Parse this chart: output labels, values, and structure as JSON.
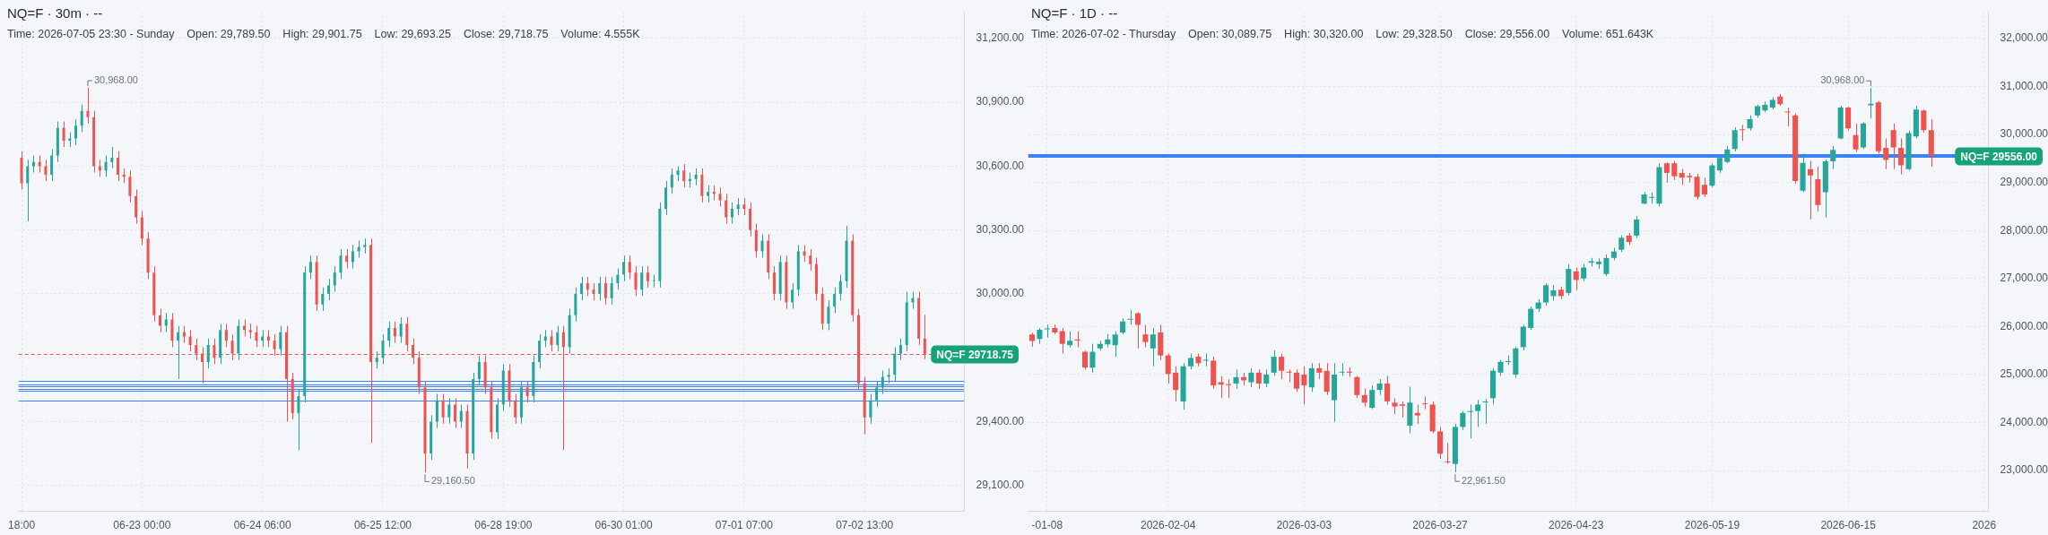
{
  "chart_data": [
    {
      "type": "candlestick",
      "title": "NQ=F · 30m · --",
      "subtitle": "Time: 2026-07-05 23:30 - Sunday    Open: 29,789.50    High: 29,901.75    Low: 29,693.25    Close: 29,718.75    Volume: 4.555K",
      "categories": [
        "18:00",
        null,
        null,
        null,
        null,
        null,
        null,
        null,
        null,
        null,
        null,
        null,
        null,
        null,
        null,
        null,
        null,
        null,
        null,
        null,
        "06-23 00:00",
        null,
        null,
        null,
        null,
        null,
        null,
        null,
        null,
        null,
        null,
        null,
        null,
        null,
        null,
        null,
        null,
        null,
        null,
        null,
        "06-24 06:00",
        null,
        null,
        null,
        null,
        null,
        null,
        null,
        null,
        null,
        null,
        null,
        null,
        null,
        null,
        null,
        null,
        null,
        null,
        null,
        "06-25 12:00",
        null,
        null,
        null,
        null,
        null,
        null,
        null,
        null,
        null,
        null,
        null,
        null,
        null,
        null,
        null,
        null,
        null,
        null,
        null,
        "06-28 19:00",
        null,
        null,
        null,
        null,
        null,
        null,
        null,
        null,
        null,
        null,
        null,
        null,
        null,
        null,
        null,
        null,
        null,
        null,
        null,
        "06-30 01:00",
        null,
        null,
        null,
        null,
        null,
        null,
        null,
        null,
        null,
        null,
        null,
        null,
        null,
        null,
        null,
        null,
        null,
        null,
        null,
        "07-01 07:00",
        null,
        null,
        null,
        null,
        null,
        null,
        null,
        null,
        null,
        null,
        null,
        null,
        null,
        null,
        null,
        null,
        null,
        null,
        null,
        "07-02 13:00",
        null,
        null,
        null,
        null,
        null,
        null,
        null,
        null,
        null,
        null,
        null,
        null,
        null,
        null,
        null,
        null
      ],
      "ohlc": [
        [
          30640,
          30670,
          30490,
          30520
        ],
        [
          30520,
          30630,
          30340,
          30600
        ],
        [
          30600,
          30650,
          30570,
          30620
        ],
        [
          30620,
          30650,
          30570,
          30600
        ],
        [
          30600,
          30630,
          30530,
          30560
        ],
        [
          30560,
          30680,
          30530,
          30650
        ],
        [
          30650,
          30810,
          30620,
          30780
        ],
        [
          30780,
          30810,
          30690,
          30720
        ],
        [
          30720,
          30760,
          30690,
          30730
        ],
        [
          30730,
          30820,
          30700,
          30790
        ],
        [
          30790,
          30890,
          30760,
          30860
        ],
        [
          30860,
          30968,
          30800,
          30830
        ],
        [
          30830,
          30860,
          30570,
          30600
        ],
        [
          30600,
          30630,
          30550,
          30580
        ],
        [
          30580,
          30650,
          30550,
          30620
        ],
        [
          30620,
          30690,
          30590,
          30640
        ],
        [
          30640,
          30670,
          30530,
          30560
        ],
        [
          30560,
          30590,
          30520,
          30550
        ],
        [
          30550,
          30580,
          30430,
          30460
        ],
        [
          30460,
          30490,
          30330,
          30360
        ],
        [
          30360,
          30390,
          30230,
          30260
        ],
        [
          30260,
          30290,
          30070,
          30100
        ],
        [
          30100,
          30130,
          29870,
          29900
        ],
        [
          29900,
          29930,
          29820,
          29850
        ],
        [
          29850,
          29910,
          29820,
          29880
        ],
        [
          29880,
          29910,
          29750,
          29780
        ],
        [
          29780,
          29850,
          29600,
          29820
        ],
        [
          29820,
          29850,
          29770,
          29800
        ],
        [
          29800,
          29830,
          29730,
          29760
        ],
        [
          29760,
          29790,
          29690,
          29720
        ],
        [
          29720,
          29750,
          29580,
          29680
        ],
        [
          29680,
          29790,
          29650,
          29760
        ],
        [
          29760,
          29790,
          29670,
          29700
        ],
        [
          29700,
          29860,
          29670,
          29830
        ],
        [
          29830,
          29860,
          29750,
          29780
        ],
        [
          29780,
          29810,
          29690,
          29720
        ],
        [
          29720,
          29880,
          29690,
          29850
        ],
        [
          29850,
          29880,
          29800,
          29830
        ],
        [
          29830,
          29860,
          29790,
          29820
        ],
        [
          29820,
          29850,
          29750,
          29780
        ],
        [
          29780,
          29830,
          29750,
          29800
        ],
        [
          29800,
          29830,
          29750,
          29780
        ],
        [
          29780,
          29810,
          29710,
          29740
        ],
        [
          29740,
          29850,
          29710,
          29820
        ],
        [
          29820,
          29850,
          29400,
          29600
        ],
        [
          29600,
          29630,
          29410,
          29440
        ],
        [
          29440,
          29550,
          29267,
          29520
        ],
        [
          29520,
          30130,
          29490,
          30100
        ],
        [
          30100,
          30180,
          30070,
          30150
        ],
        [
          30150,
          30180,
          29920,
          29950
        ],
        [
          29950,
          30030,
          29920,
          30000
        ],
        [
          30000,
          30070,
          29970,
          30040
        ],
        [
          30040,
          30130,
          30010,
          30100
        ],
        [
          30100,
          30210,
          30070,
          30180
        ],
        [
          30180,
          30210,
          30120,
          30150
        ],
        [
          30150,
          30230,
          30120,
          30200
        ],
        [
          30200,
          30250,
          30170,
          30220
        ],
        [
          30220,
          30260,
          30190,
          30230
        ],
        [
          30230,
          30260,
          29300,
          29680
        ],
        [
          29680,
          29730,
          29650,
          29700
        ],
        [
          29700,
          29810,
          29670,
          29780
        ],
        [
          29780,
          29870,
          29750,
          29840
        ],
        [
          29840,
          29870,
          29770,
          29800
        ],
        [
          29800,
          29890,
          29770,
          29860
        ],
        [
          29860,
          29890,
          29730,
          29760
        ],
        [
          29760,
          29790,
          29670,
          29700
        ],
        [
          29700,
          29730,
          29530,
          29560
        ],
        [
          29560,
          29590,
          29160.5,
          29250
        ],
        [
          29250,
          29430,
          29220,
          29400
        ],
        [
          29400,
          29530,
          29370,
          29500
        ],
        [
          29500,
          29530,
          29390,
          29420
        ],
        [
          29420,
          29510,
          29390,
          29480
        ],
        [
          29480,
          29510,
          29370,
          29400
        ],
        [
          29400,
          29480,
          29370,
          29450
        ],
        [
          29450,
          29480,
          29180,
          29250
        ],
        [
          29250,
          29630,
          29220,
          29600
        ],
        [
          29600,
          29710,
          29570,
          29680
        ],
        [
          29680,
          29710,
          29530,
          29560
        ],
        [
          29560,
          29590,
          29320,
          29350
        ],
        [
          29350,
          29510,
          29320,
          29480
        ],
        [
          29480,
          29670,
          29450,
          29640
        ],
        [
          29640,
          29670,
          29470,
          29500
        ],
        [
          29500,
          29530,
          29390,
          29420
        ],
        [
          29420,
          29590,
          29390,
          29560
        ],
        [
          29560,
          29590,
          29490,
          29520
        ],
        [
          29520,
          29710,
          29490,
          29680
        ],
        [
          29680,
          29810,
          29650,
          29780
        ],
        [
          29780,
          29830,
          29750,
          29800
        ],
        [
          29800,
          29830,
          29730,
          29760
        ],
        [
          29760,
          29850,
          29730,
          29820
        ],
        [
          29820,
          29850,
          29267,
          29750
        ],
        [
          29750,
          29930,
          29720,
          29900
        ],
        [
          29900,
          30030,
          29870,
          30000
        ],
        [
          30000,
          30080,
          29970,
          30050
        ],
        [
          30050,
          30080,
          29990,
          30020
        ],
        [
          30020,
          30050,
          29970,
          30000
        ],
        [
          30000,
          30080,
          29970,
          30050
        ],
        [
          30050,
          30080,
          29950,
          29980
        ],
        [
          29980,
          30080,
          29950,
          30050
        ],
        [
          30050,
          30120,
          30020,
          30090
        ],
        [
          30090,
          30180,
          30060,
          30150
        ],
        [
          30150,
          30180,
          30070,
          30100
        ],
        [
          30100,
          30130,
          29990,
          30020
        ],
        [
          30020,
          30130,
          29990,
          30100
        ],
        [
          30100,
          30130,
          30030,
          30060
        ],
        [
          30060,
          30090,
          30030,
          30060
        ],
        [
          30060,
          30430,
          30030,
          30400
        ],
        [
          30400,
          30530,
          30370,
          30500
        ],
        [
          30500,
          30590,
          30470,
          30560
        ],
        [
          30560,
          30600,
          30530,
          30580
        ],
        [
          30580,
          30610,
          30500,
          30530
        ],
        [
          30530,
          30570,
          30500,
          30540
        ],
        [
          30540,
          30590,
          30510,
          30560
        ],
        [
          30560,
          30590,
          30430,
          30460
        ],
        [
          30460,
          30510,
          30430,
          30480
        ],
        [
          30480,
          30510,
          30440,
          30470
        ],
        [
          30470,
          30500,
          30410,
          30440
        ],
        [
          30440,
          30470,
          30330,
          30360
        ],
        [
          30360,
          30430,
          30330,
          30400
        ],
        [
          30400,
          30450,
          30370,
          30420
        ],
        [
          30420,
          30450,
          30370,
          30400
        ],
        [
          30400,
          30430,
          30270,
          30300
        ],
        [
          30300,
          30330,
          30170,
          30200
        ],
        [
          30200,
          30280,
          30170,
          30250
        ],
        [
          30250,
          30280,
          30070,
          30100
        ],
        [
          30100,
          30130,
          29970,
          30000
        ],
        [
          30000,
          30180,
          29970,
          30150
        ],
        [
          30150,
          30180,
          29930,
          29960
        ],
        [
          29960,
          30050,
          29930,
          30020
        ],
        [
          30020,
          30230,
          29990,
          30200
        ],
        [
          30200,
          30230,
          30150,
          30180
        ],
        [
          30180,
          30210,
          30110,
          30140
        ],
        [
          30140,
          30170,
          29970,
          30000
        ],
        [
          30000,
          30030,
          29830,
          29860
        ],
        [
          29860,
          29970,
          29830,
          29940
        ],
        [
          29940,
          30030,
          29910,
          30000
        ],
        [
          30000,
          30090,
          29970,
          30060
        ],
        [
          30060,
          30320,
          30030,
          30250
        ],
        [
          30250,
          30280,
          29870,
          29900
        ],
        [
          29900,
          29930,
          29550,
          29580
        ],
        [
          29580,
          29610,
          29340,
          29420
        ],
        [
          29420,
          29530,
          29390,
          29500
        ],
        [
          29500,
          29590,
          29470,
          29560
        ],
        [
          29560,
          29640,
          29530,
          29610
        ],
        [
          29610,
          29650,
          29580,
          29620
        ],
        [
          29620,
          29750,
          29590,
          29720
        ],
        [
          29720,
          29790,
          29690,
          29760
        ],
        [
          29760,
          30010,
          29730,
          29960
        ],
        [
          29960,
          30010,
          29930,
          29980
        ],
        [
          29980,
          30010,
          29760,
          29789.5
        ],
        [
          29789.5,
          29901.75,
          29693.25,
          29718.75
        ],
        null,
        null,
        null,
        null,
        null,
        null
      ],
      "colors": [
        "#ef5350",
        "#26a69a",
        "#26a69a",
        "#ef5350",
        "#ef5350",
        "#26a69a",
        "#26a69a",
        "#ef5350",
        "#26a69a",
        "#26a69a",
        "#26a69a",
        "#ef5350",
        "#ef5350",
        "#ef5350",
        "#26a69a",
        "#26a69a",
        "#ef5350",
        "#ef5350",
        "#ef5350",
        "#ef5350",
        "#ef5350",
        "#ef5350",
        "#ef5350",
        "#ef5350",
        "#26a69a",
        "#ef5350",
        "#26a69a",
        "#ef5350",
        "#ef5350",
        "#ef5350",
        "#ef5350",
        "#26a69a",
        "#ef5350",
        "#26a69a",
        "#ef5350",
        "#ef5350",
        "#26a69a",
        "#ef5350",
        "#ef5350",
        "#ef5350",
        "#26a69a",
        "#ef5350",
        "#ef5350",
        "#26a69a",
        "#ef5350",
        "#ef5350",
        "#26a69a",
        "#26a69a",
        "#26a69a",
        "#ef5350",
        "#26a69a",
        "#26a69a",
        "#26a69a",
        "#26a69a",
        "#ef5350",
        "#26a69a",
        "#26a69a",
        "#26a69a",
        "#ef5350",
        "#26a69a",
        "#26a69a",
        "#26a69a",
        "#ef5350",
        "#26a69a",
        "#ef5350",
        "#ef5350",
        "#ef5350",
        "#ef5350",
        "#26a69a",
        "#26a69a",
        "#ef5350",
        "#26a69a",
        "#ef5350",
        "#26a69a",
        "#ef5350",
        "#26a69a",
        "#26a69a",
        "#ef5350",
        "#ef5350",
        "#26a69a",
        "#26a69a",
        "#ef5350",
        "#ef5350",
        "#26a69a",
        "#ef5350",
        "#26a69a",
        "#26a69a",
        "#26a69a",
        "#ef5350",
        "#26a69a",
        "#ef5350",
        "#26a69a",
        "#26a69a",
        "#26a69a",
        "#ef5350",
        "#ef5350",
        "#26a69a",
        "#ef5350",
        "#26a69a",
        "#26a69a",
        "#26a69a",
        "#ef5350",
        "#ef5350",
        "#26a69a",
        "#ef5350",
        "#26a69a",
        "#26a69a",
        "#26a69a",
        "#26a69a",
        "#26a69a",
        "#ef5350",
        "#26a69a",
        "#26a69a",
        "#ef5350",
        "#26a69a",
        "#ef5350",
        "#ef5350",
        "#ef5350",
        "#26a69a",
        "#26a69a",
        "#ef5350",
        "#ef5350",
        "#ef5350",
        "#26a69a",
        "#ef5350",
        "#ef5350",
        "#26a69a",
        "#ef5350",
        "#26a69a",
        "#26a69a",
        "#ef5350",
        "#ef5350",
        "#ef5350",
        "#ef5350",
        "#26a69a",
        "#26a69a",
        "#26a69a",
        "#26a69a",
        "#ef5350",
        "#ef5350",
        "#ef5350",
        "#26a69a",
        "#26a69a",
        "#26a69a",
        "#26a69a",
        "#26a69a",
        "#26a69a",
        "#26a69a",
        "#26a69a",
        "#ef5350",
        "#ef5350",
        null,
        null,
        null,
        null,
        null,
        null
      ],
      "ylim": [
        28981,
        31325
      ],
      "yticks": [
        {
          "value": 29100,
          "label": "29,100.00"
        },
        {
          "value": 29400,
          "label": "29,400.00"
        },
        {
          "value": 29700,
          "label": null
        },
        {
          "value": 30000,
          "label": "30,000.00"
        },
        {
          "value": 30300,
          "label": "30,300.00"
        },
        {
          "value": 30600,
          "label": "30,600.00"
        },
        {
          "value": 30900,
          "label": "30,900.00"
        },
        {
          "value": 31200,
          "label": "31,200.00"
        }
      ],
      "grid": true,
      "ref_lines": [
        {
          "axis": "y",
          "value": 29718.75,
          "label": "NQ=F 29718.75",
          "color": "#ef5350",
          "line_style": "dashed"
        },
        {
          "axis": "y",
          "value": 29590,
          "color": "#3b82f6"
        },
        {
          "axis": "y",
          "value": 29575,
          "color": "#3b82f6"
        },
        {
          "axis": "y",
          "value": 29565,
          "color": "#3b82f6"
        },
        {
          "axis": "y",
          "value": 29555,
          "color": "#3b82f6"
        },
        {
          "axis": "y",
          "value": 29545,
          "color": "#3b82f6"
        },
        {
          "axis": "y",
          "value": 29500,
          "color": "#3b82f6"
        }
      ],
      "annotations": [
        "30,968.00",
        "29,160.50"
      ]
    },
    {
      "type": "candlestick",
      "title": "NQ=F · 1D · --",
      "subtitle": "Time: 2026-07-02 - Thursday    Open: 30,089.75    High: 30,320.00    Low: 29,328.50    Close: 29,556.00    Volume: 651.643K",
      "categories": [
        null,
        null,
        "-01-08",
        null,
        null,
        null,
        null,
        null,
        null,
        null,
        null,
        null,
        null,
        null,
        null,
        null,
        null,
        null,
        "2026-02-04",
        null,
        null,
        null,
        null,
        null,
        null,
        null,
        null,
        null,
        null,
        null,
        null,
        null,
        null,
        null,
        null,
        null,
        "2026-03-03",
        null,
        null,
        null,
        null,
        null,
        null,
        null,
        null,
        null,
        null,
        null,
        null,
        null,
        null,
        null,
        null,
        null,
        "2026-03-27",
        null,
        null,
        null,
        null,
        null,
        null,
        null,
        null,
        null,
        null,
        null,
        null,
        null,
        null,
        null,
        null,
        null,
        "2026-04-23",
        null,
        null,
        null,
        null,
        null,
        null,
        null,
        null,
        null,
        null,
        null,
        null,
        null,
        null,
        null,
        null,
        null,
        "2026-05-19",
        null,
        null,
        null,
        null,
        null,
        null,
        null,
        null,
        null,
        null,
        null,
        null,
        null,
        null,
        null,
        null,
        null,
        "2026-06-15",
        null,
        null,
        null,
        null,
        null,
        null,
        null,
        null,
        null,
        null,
        null,
        null,
        null,
        null,
        null,
        null,
        null,
        "2026"
      ],
      "ohlc": [
        [
          25836,
          25870,
          25580,
          25700
        ],
        [
          25743,
          25970,
          25640,
          25930
        ],
        [
          25943,
          26040,
          25770,
          25957
        ],
        [
          25970,
          26040,
          25840,
          25876
        ],
        [
          25903,
          25970,
          25437,
          25637
        ],
        [
          25610,
          25900,
          25570,
          25703
        ],
        [
          25730,
          25900,
          25570,
          25710
        ],
        [
          25477,
          25500,
          25105,
          25145
        ],
        [
          25145,
          25640,
          25040,
          25477
        ],
        [
          25544,
          25700,
          25500,
          25637
        ],
        [
          25630,
          25840,
          25570,
          25730
        ],
        [
          25610,
          25900,
          25370,
          25836
        ],
        [
          25876,
          26170,
          25840,
          26103
        ],
        [
          26140,
          26342,
          26036,
          26150
        ],
        [
          26276,
          26300,
          25544,
          26036
        ],
        [
          25836,
          26036,
          25570,
          25677
        ],
        [
          25544,
          25970,
          25170,
          25836
        ],
        [
          25876,
          26036,
          25304,
          25398
        ],
        [
          25398,
          25437,
          24812,
          25012
        ],
        [
          25039,
          25170,
          24440,
          24680
        ],
        [
          24440,
          25238,
          24267,
          25172
        ],
        [
          25172,
          25437,
          25105,
          25345
        ],
        [
          25371,
          25437,
          25170,
          25238
        ],
        [
          25290,
          25437,
          25170,
          25300
        ],
        [
          25290,
          25371,
          24706,
          24773
        ],
        [
          24840,
          24970,
          24507,
          24790
        ],
        [
          24800,
          24900,
          24507,
          24780
        ],
        [
          24812,
          25105,
          24706,
          24946
        ],
        [
          24946,
          25039,
          24773,
          24879
        ],
        [
          24839,
          25132,
          24733,
          25039
        ],
        [
          25039,
          25105,
          24706,
          24812
        ],
        [
          24812,
          25105,
          24733,
          24999
        ],
        [
          25039,
          25504,
          24972,
          25371
        ],
        [
          25371,
          25437,
          24906,
          25078
        ],
        [
          25050,
          25105,
          24839,
          25040
        ],
        [
          25039,
          25105,
          24640,
          24706
        ],
        [
          24999,
          25172,
          24374,
          24773
        ],
        [
          24733,
          25238,
          24640,
          25132
        ],
        [
          25132,
          25238,
          24906,
          25039
        ],
        [
          25078,
          25238,
          24573,
          24640
        ],
        [
          24467,
          25238,
          24014,
          24999
        ],
        [
          25040,
          25238,
          24972,
          25050
        ],
        [
          25060,
          25150,
          24950,
          25039
        ],
        [
          24946,
          24972,
          24507,
          24573
        ],
        [
          24573,
          24706,
          24334,
          24414
        ],
        [
          24307,
          24773,
          24280,
          24680
        ],
        [
          24680,
          24906,
          24573,
          24813
        ],
        [
          24813,
          24972,
          24374,
          24440
        ],
        [
          24414,
          24507,
          24174,
          24334
        ],
        [
          24380,
          24440,
          24107,
          24350
        ],
        [
          23934,
          24746,
          23775,
          24414
        ],
        [
          24200,
          24374,
          23975,
          24147
        ],
        [
          24400,
          24546,
          24280,
          24380
        ],
        [
          24374,
          24440,
          23775,
          23815
        ],
        [
          23815,
          23908,
          23243,
          23349
        ],
        [
          23180,
          23575,
          23137,
          23170
        ],
        [
          23137,
          23975,
          22961.5,
          23908
        ],
        [
          23908,
          24240,
          23841,
          24200
        ],
        [
          24220,
          24374,
          23669,
          24240
        ],
        [
          24240,
          24467,
          23908,
          24374
        ],
        [
          24420,
          24493,
          23975,
          24430
        ],
        [
          24507,
          25132,
          24374,
          25079
        ],
        [
          25039,
          25304,
          24972,
          25265
        ],
        [
          25260,
          25398,
          25198,
          25270
        ],
        [
          25000,
          25570,
          24932,
          25544
        ],
        [
          25570,
          26036,
          25504,
          25996
        ],
        [
          25970,
          26408,
          25930,
          26369
        ],
        [
          26369,
          26568,
          26302,
          26500
        ],
        [
          26501,
          26900,
          26435,
          26860
        ],
        [
          26634,
          26860,
          26541,
          26754
        ],
        [
          26767,
          26834,
          26568,
          26634
        ],
        [
          26700,
          27300,
          26650,
          27200
        ],
        [
          27150,
          27230,
          26760,
          26970
        ],
        [
          27000,
          27300,
          26950,
          27230
        ],
        [
          27330,
          27430,
          27250,
          27360
        ],
        [
          27300,
          27420,
          27200,
          27350
        ],
        [
          27094,
          27500,
          27050,
          27427
        ],
        [
          27430,
          27640,
          27380,
          27561
        ],
        [
          27600,
          27900,
          27550,
          27850
        ],
        [
          27894,
          27950,
          27700,
          27760
        ],
        [
          27894,
          28300,
          27850,
          28227
        ],
        [
          28561,
          28800,
          28550,
          28750
        ],
        [
          28680,
          28790,
          28560,
          28700
        ],
        [
          28561,
          29400,
          28500,
          29320
        ],
        [
          29400,
          29420,
          29000,
          29200
        ],
        [
          29400,
          29450,
          29050,
          29130
        ],
        [
          29200,
          29280,
          28950,
          29100
        ],
        [
          29140,
          29200,
          29000,
          29110
        ],
        [
          29120,
          29180,
          28650,
          28700
        ],
        [
          28950,
          29100,
          28700,
          28750
        ],
        [
          28934,
          29400,
          28900,
          29360
        ],
        [
          29250,
          29560,
          29200,
          29510
        ],
        [
          29430,
          29760,
          29400,
          29690
        ],
        [
          29700,
          30150,
          29650,
          30090
        ],
        [
          30110,
          30200,
          29870,
          30090
        ],
        [
          30130,
          30400,
          30080,
          30320
        ],
        [
          30400,
          30620,
          30350,
          30590
        ],
        [
          30500,
          30690,
          30460,
          30620
        ],
        [
          30560,
          30780,
          30520,
          30720
        ],
        [
          30790,
          30840,
          30600,
          30630
        ],
        [
          30480,
          30560,
          30170,
          30460
        ],
        [
          30400,
          30440,
          28980,
          29030
        ],
        [
          28830,
          29600,
          28800,
          29410
        ],
        [
          29280,
          29450,
          28230,
          29150
        ],
        [
          29070,
          29330,
          28400,
          28530
        ],
        [
          28800,
          29480,
          28270,
          29440
        ],
        [
          29440,
          29760,
          29280,
          29680
        ],
        [
          29920,
          30600,
          29900,
          30560
        ],
        [
          30560,
          30580,
          30080,
          30130
        ],
        [
          29990,
          30230,
          29640,
          29690
        ],
        [
          29730,
          30260,
          29700,
          30230
        ],
        [
          30610,
          30968,
          30330,
          30640
        ],
        [
          30670,
          30700,
          29600,
          29650
        ],
        [
          29720,
          29920,
          29280,
          29470
        ],
        [
          30090,
          30230,
          29280,
          29730
        ],
        [
          29720,
          29920,
          29170,
          29360
        ],
        [
          29280,
          30080,
          29250,
          30030
        ],
        [
          29960,
          30600,
          29920,
          30520
        ],
        [
          30500,
          30520,
          30040,
          30090
        ],
        [
          30089.75,
          30320,
          29328.5,
          29556
        ],
        null,
        null,
        null,
        null,
        null,
        null,
        null
      ],
      "colors": [
        "#ef5350",
        "#26a69a",
        "#26a69a",
        "#ef5350",
        "#ef5350",
        "#26a69a",
        "#ef5350",
        "#ef5350",
        "#26a69a",
        "#26a69a",
        "#26a69a",
        "#26a69a",
        "#26a69a",
        "#26a69a",
        "#ef5350",
        "#ef5350",
        "#26a69a",
        "#ef5350",
        "#ef5350",
        "#ef5350",
        "#26a69a",
        "#26a69a",
        "#ef5350",
        "#26a69a",
        "#ef5350",
        "#ef5350",
        "#ef5350",
        "#26a69a",
        "#ef5350",
        "#26a69a",
        "#ef5350",
        "#26a69a",
        "#26a69a",
        "#ef5350",
        "#ef5350",
        "#ef5350",
        "#ef5350",
        "#26a69a",
        "#ef5350",
        "#ef5350",
        "#26a69a",
        "#26a69a",
        "#ef5350",
        "#ef5350",
        "#ef5350",
        "#26a69a",
        "#26a69a",
        "#ef5350",
        "#ef5350",
        "#ef5350",
        "#26a69a",
        "#ef5350",
        "#ef5350",
        "#ef5350",
        "#ef5350",
        "#ef5350",
        "#26a69a",
        "#26a69a",
        "#26a69a",
        "#26a69a",
        "#26a69a",
        "#26a69a",
        "#26a69a",
        "#26a69a",
        "#26a69a",
        "#26a69a",
        "#26a69a",
        "#26a69a",
        "#26a69a",
        "#26a69a",
        "#ef5350",
        "#26a69a",
        "#ef5350",
        "#26a69a",
        "#26a69a",
        "#26a69a",
        "#26a69a",
        "#26a69a",
        "#26a69a",
        "#ef5350",
        "#26a69a",
        "#26a69a",
        "#26a69a",
        "#26a69a",
        "#ef5350",
        "#ef5350",
        "#ef5350",
        "#ef5350",
        "#ef5350",
        "#ef5350",
        "#26a69a",
        "#26a69a",
        "#26a69a",
        "#26a69a",
        "#ef5350",
        "#26a69a",
        "#26a69a",
        "#26a69a",
        "#26a69a",
        "#ef5350",
        "#ef5350",
        "#ef5350",
        "#26a69a",
        "#ef5350",
        "#ef5350",
        "#26a69a",
        "#26a69a",
        "#26a69a",
        "#ef5350",
        "#ef5350",
        "#26a69a",
        "#26a69a",
        "#ef5350",
        "#ef5350",
        "#ef5350",
        "#ef5350",
        "#26a69a",
        "#26a69a",
        "#ef5350",
        "#ef5350",
        null,
        null,
        null,
        null,
        null,
        null,
        null
      ],
      "ylim": [
        22161,
        32556
      ],
      "yticks": [
        {
          "value": 23000,
          "label": "23,000.00"
        },
        {
          "value": 24000,
          "label": "24,000.00"
        },
        {
          "value": 25000,
          "label": "25,000.00"
        },
        {
          "value": 26000,
          "label": "26,000.00"
        },
        {
          "value": 27000,
          "label": "27,000.00"
        },
        {
          "value": 28000,
          "label": "28,000.00"
        },
        {
          "value": 29000,
          "label": "29,000.00"
        },
        {
          "value": 30000,
          "label": "30,000.00"
        },
        {
          "value": 31000,
          "label": "31,000.00"
        },
        {
          "value": 32000,
          "label": "32,000.00"
        }
      ],
      "grid": true,
      "ref_lines": [
        {
          "axis": "y",
          "value": 29600,
          "color": "#3b82f6"
        },
        {
          "axis": "y",
          "value": 29575,
          "color": "#3b82f6"
        },
        {
          "axis": "y",
          "value": 29556,
          "label": "NQ=F 29556.00",
          "color": "#3b82f6"
        },
        {
          "axis": "y",
          "value": 29530,
          "color": "#3b82f6"
        }
      ],
      "annotations": [
        "30,968.00",
        "22,961.50"
      ]
    }
  ]
}
